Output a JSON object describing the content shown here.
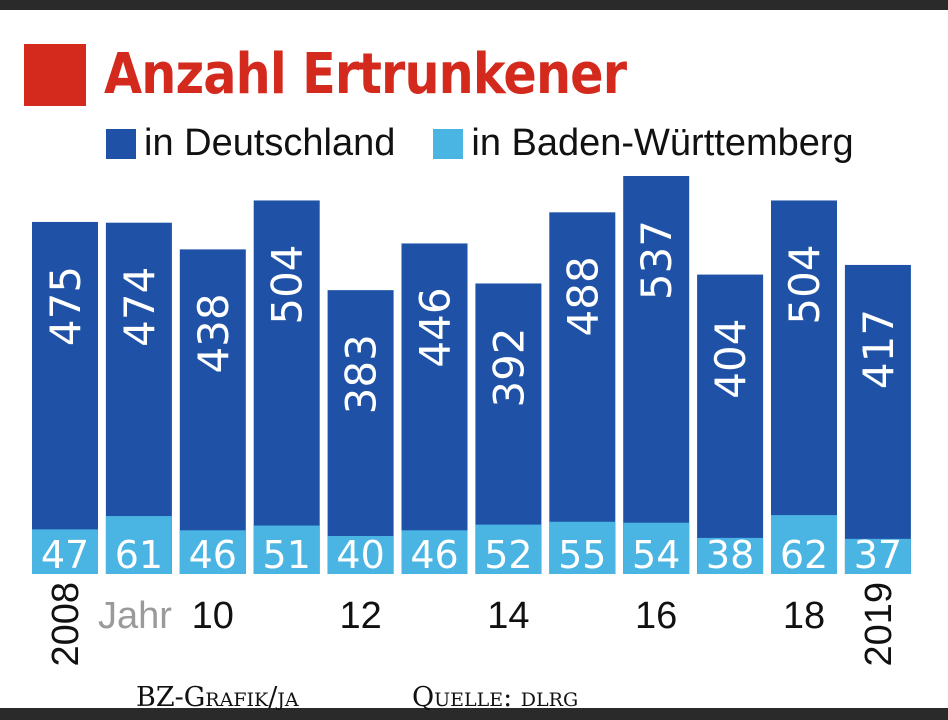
{
  "header": {
    "title": "Anzahl Ertrunkener",
    "title_color": "#d42a1e"
  },
  "legend": {
    "items": [
      {
        "label": "in Deutschland",
        "color": "#1f52a6"
      },
      {
        "label": "in Baden-Württemberg",
        "color": "#4ab4e2"
      }
    ]
  },
  "axis": {
    "jahr_label": "Jahr",
    "tick_labels": [
      "2008",
      "10",
      "12",
      "14",
      "16",
      "18",
      "2019"
    ]
  },
  "footer": {
    "credit": "BZ-Grafik/ja",
    "source": "Quelle: dlrg"
  },
  "chart_data": {
    "type": "bar",
    "categories": [
      "2008",
      "2009",
      "2010",
      "2011",
      "2012",
      "2013",
      "2014",
      "2015",
      "2016",
      "2017",
      "2018",
      "2019"
    ],
    "series": [
      {
        "name": "in Deutschland",
        "values": [
          475,
          474,
          438,
          504,
          383,
          446,
          392,
          488,
          537,
          404,
          504,
          417
        ],
        "color": "#1f52a6"
      },
      {
        "name": "in Baden-Württemberg",
        "values": [
          47,
          61,
          46,
          51,
          40,
          46,
          52,
          55,
          54,
          38,
          62,
          37
        ],
        "color": "#4ab4e2"
      }
    ],
    "title": "Anzahl Ertrunkener",
    "xlabel": "Jahr",
    "ylabel": "",
    "ylim": [
      0,
      537
    ],
    "grid": false,
    "legend_position": "top-left"
  }
}
